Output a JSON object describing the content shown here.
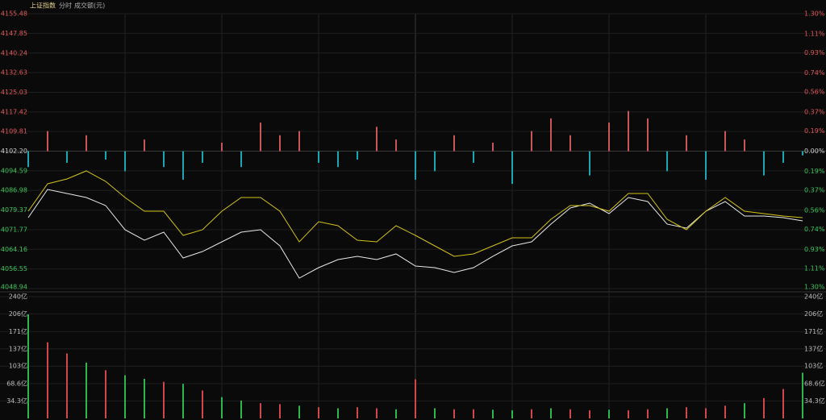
{
  "chart_data": [
    {
      "type": "line",
      "title": "上证指数",
      "subtitle": "分时",
      "ylim": [
        4048.94,
        4155.48
      ],
      "yticks": [
        4155.48,
        4147.85,
        4140.24,
        4132.63,
        4125.03,
        4117.42,
        4109.81,
        {
          "value": 4102.2,
          "label": "4102.20"
        },
        4094.59,
        4086.98,
        4079.37,
        4071.77,
        4064.16,
        4056.55,
        4048.94
      ],
      "y2lim": [
        -1.3,
        1.3
      ],
      "y2ticks": [
        {
          "value": 1.3,
          "label": "1.30%"
        },
        {
          "value": 1.11,
          "label": "1.11%"
        },
        {
          "value": 0.93,
          "label": "0.93%"
        },
        {
          "value": 0.74,
          "label": "0.74%"
        },
        {
          "value": 0.56,
          "label": "0.56%"
        },
        {
          "value": 0.37,
          "label": "0.37%"
        },
        {
          "value": 0.19,
          "label": "0.19%"
        },
        {
          "value": 0,
          "label": "0.00%"
        },
        {
          "value": -0.19,
          "label": "0.19%"
        },
        {
          "value": -0.37,
          "label": "0.37%"
        },
        {
          "value": -0.56,
          "label": "0.56%"
        },
        {
          "value": -0.74,
          "label": "0.74%"
        },
        {
          "value": -0.93,
          "label": "0.93%"
        },
        {
          "value": -1.11,
          "label": "1.11%"
        },
        {
          "value": -1.3,
          "label": "1.30%"
        }
      ],
      "grid": true,
      "series": [
        {
          "color": "#e8e8e8",
          "values": [
            4076.44,
            4087.37,
            4085.81,
            4084.25,
            4081.12,
            4071.75,
            4067.69,
            4070.81,
            4060.81,
            4063.31,
            4067.06,
            4070.81,
            4071.75,
            4065.5,
            4053.0,
            4057.06,
            4060.19,
            4061.44,
            4060.19,
            4062.38,
            4057.69,
            4057.06,
            4055.19,
            4057.06,
            4061.44,
            4065.5,
            4067.06,
            4073.94,
            4080.18,
            4082.06,
            4078.0,
            4084.25,
            4082.68,
            4073.94,
            4072.37,
            4078.93,
            4082.68,
            4077.06,
            4077.06,
            4076.44,
            4075.19
          ]
        },
        {
          "color": "#d4c21a",
          "values": [
            4078.93,
            4089.56,
            4091.43,
            4094.56,
            4090.49,
            4084.25,
            4078.93,
            4078.93,
            4069.56,
            4071.75,
            4078.93,
            4084.25,
            4084.25,
            4078.93,
            4067.06,
            4074.87,
            4073.31,
            4067.69,
            4067.06,
            4073.31,
            4069.56,
            4065.5,
            4061.44,
            4062.38,
            4065.5,
            4068.62,
            4068.62,
            4075.81,
            4081.12,
            4081.12,
            4078.93,
            4085.81,
            4085.81,
            4075.81,
            4071.75,
            4078.93,
            4084.25,
            4078.93,
            4078.0,
            4077.06,
            4076.44
          ]
        },
        {
          "type": "bar",
          "axis": "y2",
          "up_color": "#c8575a",
          "down_color": "#1aa6b3",
          "values": [
            -0.15,
            0.19,
            -0.11,
            0.15,
            -0.08,
            -0.19,
            0.11,
            -0.15,
            -0.27,
            -0.11,
            0.08,
            -0.15,
            0.27,
            0.15,
            0.19,
            -0.11,
            -0.15,
            -0.08,
            0.23,
            0.11,
            -0.27,
            -0.19,
            0.15,
            -0.11,
            0.08,
            -0.31,
            0.19,
            0.31,
            0.15,
            -0.23,
            0.27,
            0.38,
            0.31,
            -0.19,
            0.15,
            -0.27,
            0.19,
            0.11,
            -0.23,
            -0.11,
            -0.04
          ]
        }
      ]
    },
    {
      "type": "bar",
      "title": "成交额(元)",
      "ylim": [
        0,
        240
      ],
      "yticks": [
        {
          "value": 240,
          "label": "240亿"
        },
        {
          "value": 206,
          "label": "206亿"
        },
        {
          "value": 171,
          "label": "171亿"
        },
        {
          "value": 137,
          "label": "137亿"
        },
        {
          "value": 103,
          "label": "103亿"
        },
        {
          "value": 68.6,
          "label": "68.6亿"
        },
        {
          "value": 34.3,
          "label": "34.3亿"
        }
      ],
      "grid": true,
      "values": [
        205,
        150,
        128,
        110,
        95,
        85,
        78,
        72,
        68,
        55,
        42,
        35,
        30,
        28,
        25,
        22,
        20,
        22,
        20,
        18,
        77,
        20,
        18,
        18,
        17,
        16,
        18,
        20,
        18,
        16,
        17,
        16,
        18,
        20,
        22,
        20,
        25,
        30,
        40,
        58,
        90
      ],
      "colors": [
        "#2db84d",
        "#d0464a",
        "#d0464a",
        "#2db84d",
        "#d0464a",
        "#2db84d",
        "#2db84d",
        "#d0464a",
        "#2db84d",
        "#d0464a",
        "#2db84d",
        "#2db84d",
        "#d0464a",
        "#d0464a",
        "#2db84d",
        "#d0464a",
        "#2db84d",
        "#d0464a",
        "#d0464a",
        "#2db84d",
        "#d0464a",
        "#2db84d",
        "#d0464a",
        "#d0464a",
        "#2db84d",
        "#2db84d",
        "#d0464a",
        "#2db84d",
        "#d0464a",
        "#d0464a",
        "#2db84d",
        "#d0464a",
        "#d0464a",
        "#2db84d",
        "#d0464a",
        "#d0464a",
        "#d0464a",
        "#2db84d",
        "#d0464a",
        "#d0464a",
        "#2db84d"
      ]
    }
  ]
}
